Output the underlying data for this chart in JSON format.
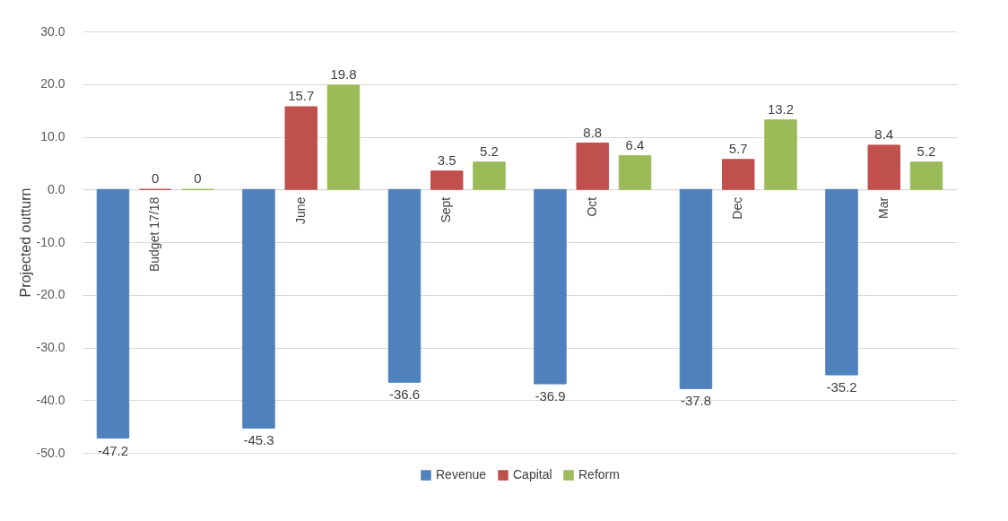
{
  "chart_data": {
    "type": "bar",
    "ylabel": "Projected outturn",
    "categories": [
      "Budget 17/18",
      "June",
      "Sept",
      "Oct",
      "Dec",
      "Mar"
    ],
    "series": [
      {
        "name": "Revenue",
        "color": "#4f81bd",
        "values": [
          -47.2,
          -45.3,
          -36.6,
          -36.9,
          -37.8,
          -35.2
        ]
      },
      {
        "name": "Capital",
        "color": "#c0504d",
        "values": [
          0,
          15.7,
          3.5,
          8.8,
          5.7,
          8.4
        ]
      },
      {
        "name": "Reform",
        "color": "#9bbb59",
        "values": [
          0,
          19.8,
          5.2,
          6.4,
          13.2,
          5.2
        ]
      }
    ],
    "ylim": [
      -50,
      30
    ],
    "yticks": [
      {
        "value": -50,
        "label": "-50.0"
      },
      {
        "value": -40,
        "label": "-40.0"
      },
      {
        "value": -30,
        "label": "-30.0"
      },
      {
        "value": -20,
        "label": "-20.0"
      },
      {
        "value": -10,
        "label": "-10.0"
      },
      {
        "value": 0,
        "label": "0.0"
      },
      {
        "value": 10,
        "label": "10.0"
      },
      {
        "value": 20,
        "label": "20.0"
      },
      {
        "value": 30,
        "label": "30.0"
      }
    ],
    "grid": "y",
    "legend": "bottom",
    "data_labels": true
  }
}
